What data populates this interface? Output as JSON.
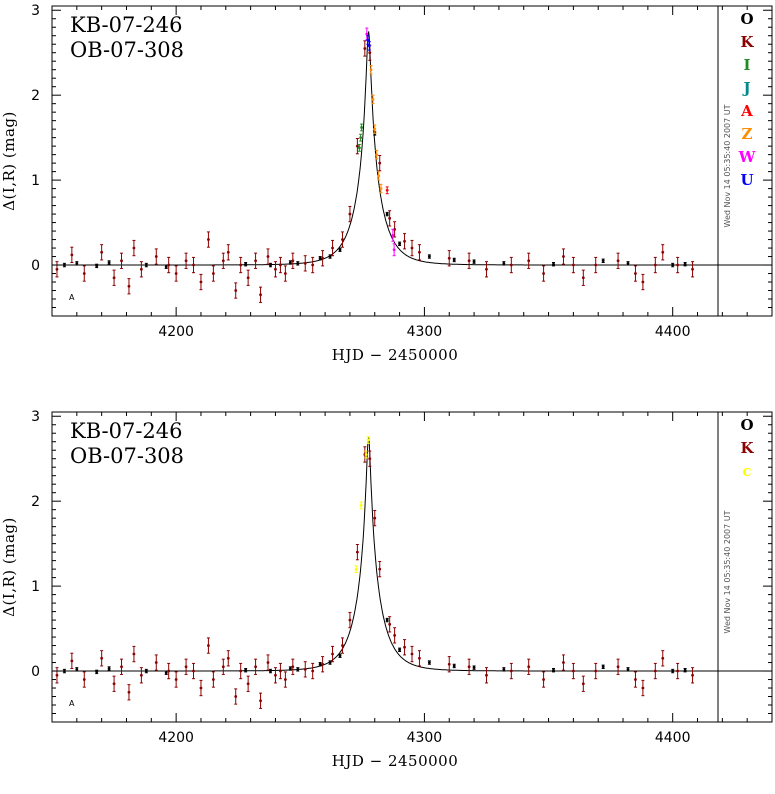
{
  "chart_data": [
    {
      "type": "scatter",
      "title_lines": [
        "KB-07-246",
        "OB-07-308"
      ],
      "xlabel": "HJD − 2450000",
      "ylabel": "Δ(I,R) (mag)",
      "xlim": [
        4150,
        4440
      ],
      "ylim": [
        -0.6,
        3.05
      ],
      "xticks": [
        4200,
        4300,
        4400
      ],
      "yticks": [
        0,
        1,
        2,
        3
      ],
      "timestamp": "Wed Nov 14 05:35:40 2007 UT",
      "corner_mark": "A",
      "model": {
        "t0": 4277.5,
        "tE": 9.5,
        "peak": 2.75
      },
      "legend": [
        {
          "label": "O",
          "color": "#000000"
        },
        {
          "label": "K",
          "color": "#8b0000"
        },
        {
          "label": "I",
          "color": "#228b22"
        },
        {
          "label": "J",
          "color": "#008b8b"
        },
        {
          "label": "A",
          "color": "#ff0000"
        },
        {
          "label": "Z",
          "color": "#ff8c00"
        },
        {
          "label": "W",
          "color": "#ff00ff"
        },
        {
          "label": "U",
          "color": "#0000ff"
        }
      ],
      "series": [
        {
          "name": "O",
          "color": "#000000",
          "x": [
            4155,
            4160,
            4168,
            4173,
            4188,
            4196,
            4228,
            4238,
            4246,
            4249,
            4258,
            4262,
            4266,
            4280,
            4285,
            4290,
            4302,
            4312,
            4320,
            4332,
            4352,
            4372,
            4382,
            4400,
            4405
          ],
          "y": [
            0.0,
            0.02,
            -0.01,
            0.03,
            0.0,
            -0.02,
            0.01,
            0.0,
            0.03,
            0.02,
            0.08,
            0.1,
            0.18,
            1.55,
            0.6,
            0.25,
            0.1,
            0.06,
            0.04,
            0.02,
            0.01,
            0.05,
            0.02,
            0.0,
            0.01
          ],
          "err": 0.02
        },
        {
          "name": "K",
          "color": "#8b0000",
          "x": [
            4152,
            4158,
            4163,
            4170,
            4175,
            4178,
            4181,
            4183,
            4186,
            4192,
            4197,
            4200,
            4204,
            4207,
            4210,
            4213,
            4215,
            4219,
            4221,
            4224,
            4226,
            4229,
            4232,
            4234,
            4237,
            4240,
            4242,
            4244,
            4247,
            4252,
            4255,
            4259,
            4263,
            4267,
            4270,
            4273,
            4276,
            4278,
            4282,
            4286,
            4288,
            4292,
            4295,
            4298,
            4310,
            4318,
            4325,
            4335,
            4342,
            4348,
            4356,
            4360,
            4364,
            4369,
            4378,
            4385,
            4388,
            4393,
            4396,
            4402,
            4408
          ],
          "y": [
            -0.05,
            0.12,
            -0.1,
            0.15,
            -0.15,
            0.05,
            -0.25,
            0.2,
            -0.05,
            0.1,
            0.0,
            -0.1,
            0.05,
            0.0,
            -0.2,
            0.3,
            -0.1,
            0.05,
            0.15,
            -0.3,
            0.0,
            -0.15,
            0.05,
            -0.35,
            0.1,
            -0.05,
            0.0,
            -0.1,
            0.05,
            0.02,
            0.0,
            0.08,
            0.2,
            0.3,
            0.6,
            1.4,
            2.55,
            2.5,
            1.2,
            0.55,
            0.42,
            0.28,
            0.2,
            0.15,
            0.08,
            0.05,
            -0.05,
            0.0,
            0.05,
            -0.1,
            0.1,
            0.0,
            -0.15,
            0.0,
            0.05,
            -0.1,
            -0.2,
            0.0,
            0.15,
            0.0,
            -0.05
          ],
          "err": 0.09
        },
        {
          "name": "I",
          "color": "#228b22",
          "x": [
            4273.8,
            4274.3,
            4274.7
          ],
          "y": [
            1.38,
            1.5,
            1.62
          ],
          "err": 0.04
        },
        {
          "name": "A",
          "color": "#ff0000",
          "x": [
            4285
          ],
          "y": [
            0.88
          ],
          "err": 0.04
        },
        {
          "name": "Z",
          "color": "#ff8c00",
          "x": [
            4278.5,
            4279.3,
            4280.0,
            4280.8,
            4281.6,
            4282.5
          ],
          "y": [
            2.3,
            1.95,
            1.6,
            1.3,
            1.05,
            0.9
          ],
          "err": 0.05
        },
        {
          "name": "W",
          "color": "#ff00ff",
          "x": [
            4276.8,
            4287.3,
            4287.8
          ],
          "y": [
            2.72,
            0.35,
            0.18
          ],
          "err": 0.07
        },
        {
          "name": "U",
          "color": "#0000ff",
          "x": [
            4277.2,
            4277.8
          ],
          "y": [
            2.65,
            2.58
          ],
          "err": 0.05
        }
      ]
    },
    {
      "type": "scatter",
      "title_lines": [
        "KB-07-246",
        "OB-07-308"
      ],
      "xlabel": "HJD − 2450000",
      "ylabel": "Δ(I,R) (mag)",
      "xlim": [
        4150,
        4440
      ],
      "ylim": [
        -0.6,
        3.05
      ],
      "xticks": [
        4200,
        4300,
        4400
      ],
      "yticks": [
        0,
        1,
        2,
        3
      ],
      "timestamp": "Wed Nov 14 05:35:40 2007 UT",
      "corner_mark": "A",
      "model": {
        "t0": 4277.5,
        "tE": 9.5,
        "peak": 2.75
      },
      "legend": [
        {
          "label": "O",
          "color": "#000000"
        },
        {
          "label": "K",
          "color": "#8b0000"
        },
        {
          "label": "c",
          "color": "#ffff00"
        }
      ],
      "series": [
        {
          "name": "O",
          "color": "#000000",
          "x": [
            4155,
            4160,
            4168,
            4173,
            4188,
            4196,
            4228,
            4238,
            4246,
            4249,
            4258,
            4262,
            4266,
            4285,
            4290,
            4302,
            4312,
            4320,
            4332,
            4352,
            4372,
            4382,
            4400,
            4405
          ],
          "y": [
            0.0,
            0.02,
            -0.01,
            0.03,
            0.0,
            -0.02,
            0.01,
            0.0,
            0.03,
            0.02,
            0.08,
            0.1,
            0.18,
            0.6,
            0.25,
            0.1,
            0.06,
            0.04,
            0.02,
            0.01,
            0.05,
            0.02,
            0.0,
            0.01
          ],
          "err": 0.02
        },
        {
          "name": "K",
          "color": "#8b0000",
          "x": [
            4152,
            4158,
            4163,
            4170,
            4175,
            4178,
            4181,
            4183,
            4186,
            4192,
            4197,
            4200,
            4204,
            4207,
            4210,
            4213,
            4215,
            4219,
            4221,
            4224,
            4226,
            4229,
            4232,
            4234,
            4237,
            4240,
            4242,
            4244,
            4247,
            4252,
            4255,
            4259,
            4263,
            4267,
            4270,
            4273,
            4276,
            4278,
            4280,
            4282,
            4286,
            4288,
            4292,
            4295,
            4298,
            4310,
            4318,
            4325,
            4335,
            4342,
            4348,
            4356,
            4360,
            4364,
            4369,
            4378,
            4385,
            4388,
            4393,
            4396,
            4402,
            4408
          ],
          "y": [
            -0.05,
            0.12,
            -0.1,
            0.15,
            -0.15,
            0.05,
            -0.25,
            0.2,
            -0.05,
            0.1,
            0.0,
            -0.1,
            0.05,
            0.0,
            -0.2,
            0.3,
            -0.1,
            0.05,
            0.15,
            -0.3,
            0.0,
            -0.15,
            0.05,
            -0.35,
            0.1,
            -0.05,
            0.0,
            -0.1,
            0.05,
            0.02,
            0.0,
            0.08,
            0.2,
            0.3,
            0.6,
            1.4,
            2.55,
            2.5,
            1.8,
            1.2,
            0.55,
            0.42,
            0.28,
            0.2,
            0.15,
            0.08,
            0.05,
            -0.05,
            0.0,
            0.05,
            -0.1,
            0.1,
            0.0,
            -0.15,
            0.0,
            0.05,
            -0.1,
            -0.2,
            0.0,
            0.15,
            0.0,
            -0.05
          ],
          "err": 0.09
        },
        {
          "name": "c",
          "color": "#ffff00",
          "x": [
            4272.5,
            4274.5,
            4276.5,
            4277.3
          ],
          "y": [
            1.2,
            1.95,
            2.55,
            2.72
          ],
          "err": 0.04
        }
      ]
    }
  ]
}
